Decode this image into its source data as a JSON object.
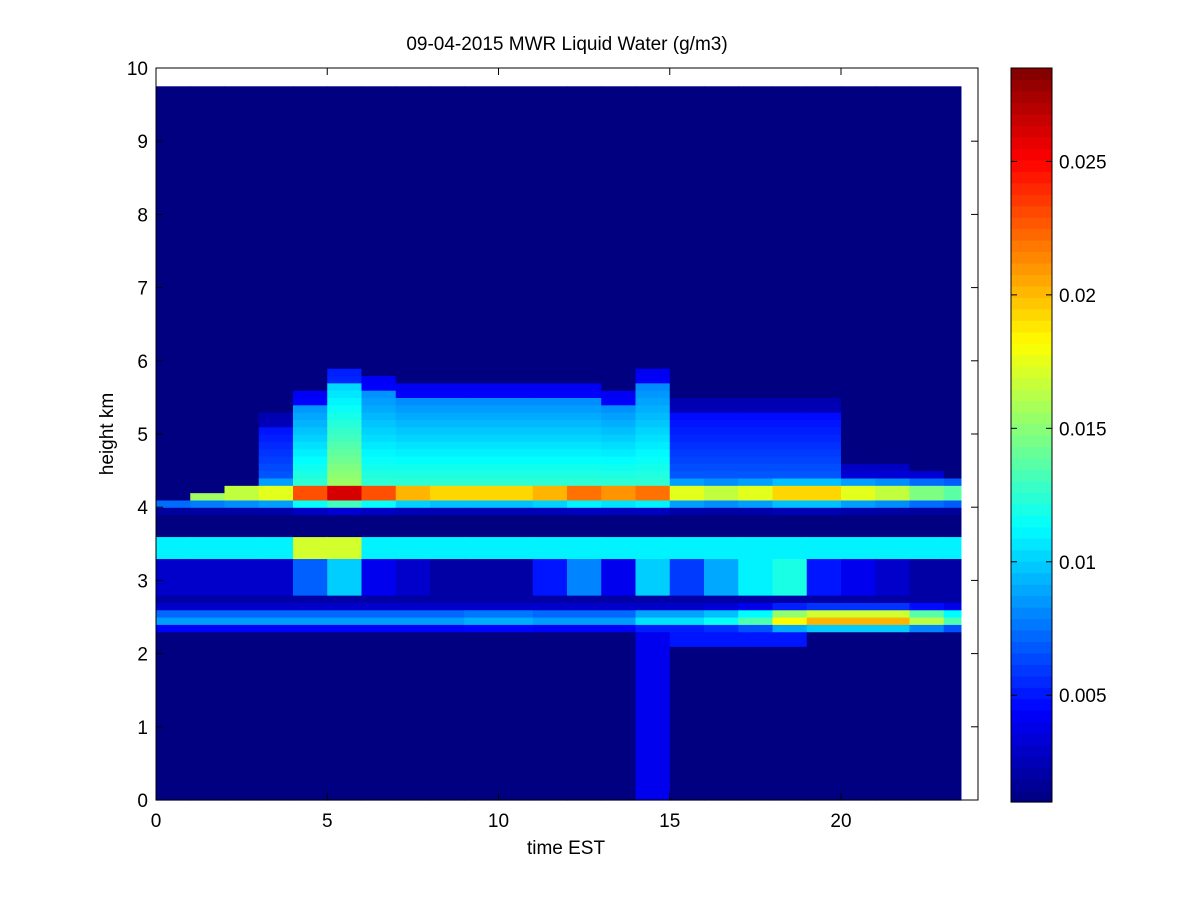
{
  "chart_data": {
    "type": "heatmap",
    "title": "09-04-2015 MWR Liquid Water (g/m3)",
    "xlabel": "time EST",
    "ylabel": "height km",
    "xlim": [
      0,
      24
    ],
    "ylim": [
      0,
      10
    ],
    "x_ticks": [
      0,
      5,
      10,
      15,
      20
    ],
    "y_ticks": [
      0,
      1,
      2,
      3,
      4,
      5,
      6,
      7,
      8,
      9,
      10
    ],
    "colorbar": {
      "min": 0.001,
      "max": 0.0285,
      "ticks": [
        0.005,
        0.01,
        0.015,
        0.02,
        0.025
      ],
      "tick_labels": [
        "0.005",
        "0.01",
        "0.015",
        "0.02",
        "0.025"
      ],
      "colormap": "jet"
    },
    "x_centers": [
      0,
      1,
      2,
      3,
      4,
      5,
      6,
      7,
      8,
      9,
      10,
      11,
      12,
      13,
      14,
      15,
      16,
      17,
      18,
      19,
      20,
      21,
      22,
      23
    ],
    "data_extent_y": [
      0,
      9.75
    ],
    "profiles": [
      {
        "band_top": 4.1,
        "shift": 0.0,
        "p": 0.016,
        "dip": 0.011
      },
      {
        "band_top": 4.2,
        "shift": 0.0,
        "p": 0.017,
        "dip": 0.005
      },
      {
        "band_top": 4.3,
        "shift": 0.0,
        "p": 0.018,
        "dip": 0.007
      },
      {
        "band_top": 5.3,
        "shift": 0.0,
        "p": 0.019,
        "dip": 0.008
      },
      {
        "band_top": 5.6,
        "shift": 0.0,
        "p": 0.025,
        "dip": 0.012
      },
      {
        "band_top": 5.9,
        "shift": 0.0,
        "p": 0.0285,
        "dip": 0.015
      },
      {
        "band_top": 5.8,
        "shift": 0.0,
        "p": 0.025,
        "dip": 0.014
      },
      {
        "band_top": 5.65,
        "shift": 0.0,
        "p": 0.022,
        "dip": 0.013
      },
      {
        "band_top": 5.65,
        "shift": 0.0,
        "p": 0.021,
        "dip": 0.013
      },
      {
        "band_top": 5.65,
        "shift": 0.0,
        "p": 0.021,
        "dip": 0.013
      },
      {
        "band_top": 5.65,
        "shift": 0.0,
        "p": 0.021,
        "dip": 0.013
      },
      {
        "band_top": 5.65,
        "shift": 0.0,
        "p": 0.022,
        "dip": 0.013
      },
      {
        "band_top": 5.65,
        "shift": 0.0,
        "p": 0.024,
        "dip": 0.013
      },
      {
        "band_top": 5.55,
        "shift": 0.0,
        "p": 0.023,
        "dip": 0.012
      },
      {
        "band_top": 5.85,
        "shift": 0.0,
        "p": 0.024,
        "dip": 0.012
      },
      {
        "band_top": 5.45,
        "shift": 0.0,
        "p": 0.019,
        "dip": 0.005
      },
      {
        "band_top": 5.45,
        "shift": 0.0,
        "p": 0.018,
        "dip": 0.004
      },
      {
        "band_top": 5.45,
        "shift": 0.0,
        "p": 0.019,
        "dip": 0.004
      },
      {
        "band_top": 5.45,
        "shift": 0.0,
        "p": 0.021,
        "dip": 0.005
      },
      {
        "band_top": 5.45,
        "shift": 0.0,
        "p": 0.021,
        "dip": 0.006
      },
      {
        "band_top": 4.6,
        "shift": 0.0,
        "p": 0.019,
        "dip": 0.004
      },
      {
        "band_top": 4.6,
        "shift": 0.0,
        "p": 0.018,
        "dip": 0.005
      },
      {
        "band_top": 4.45,
        "shift": 0.0,
        "p": 0.016,
        "dip": 0.005
      },
      {
        "band_top": 4.4,
        "shift": 0.0,
        "p": 0.015,
        "dip": 0.006
      }
    ],
    "lower_layer": [
      0.009,
      0.009,
      0.009,
      0.009,
      0.009,
      0.009,
      0.009,
      0.009,
      0.009,
      0.0095,
      0.0095,
      0.009,
      0.009,
      0.009,
      0.011,
      0.011,
      0.012,
      0.014,
      0.019,
      0.021,
      0.021,
      0.021,
      0.017,
      0.014
    ],
    "mid_column": [
      0.003,
      0.003,
      0.003,
      0.003,
      0.007,
      0.01,
      0.004,
      0.003,
      0.002,
      0.002,
      0.002,
      0.005,
      0.008,
      0.004,
      0.01,
      0.006,
      0.009,
      0.011,
      0.012,
      0.005,
      0.004,
      0.003,
      0.002,
      0.002
    ]
  }
}
